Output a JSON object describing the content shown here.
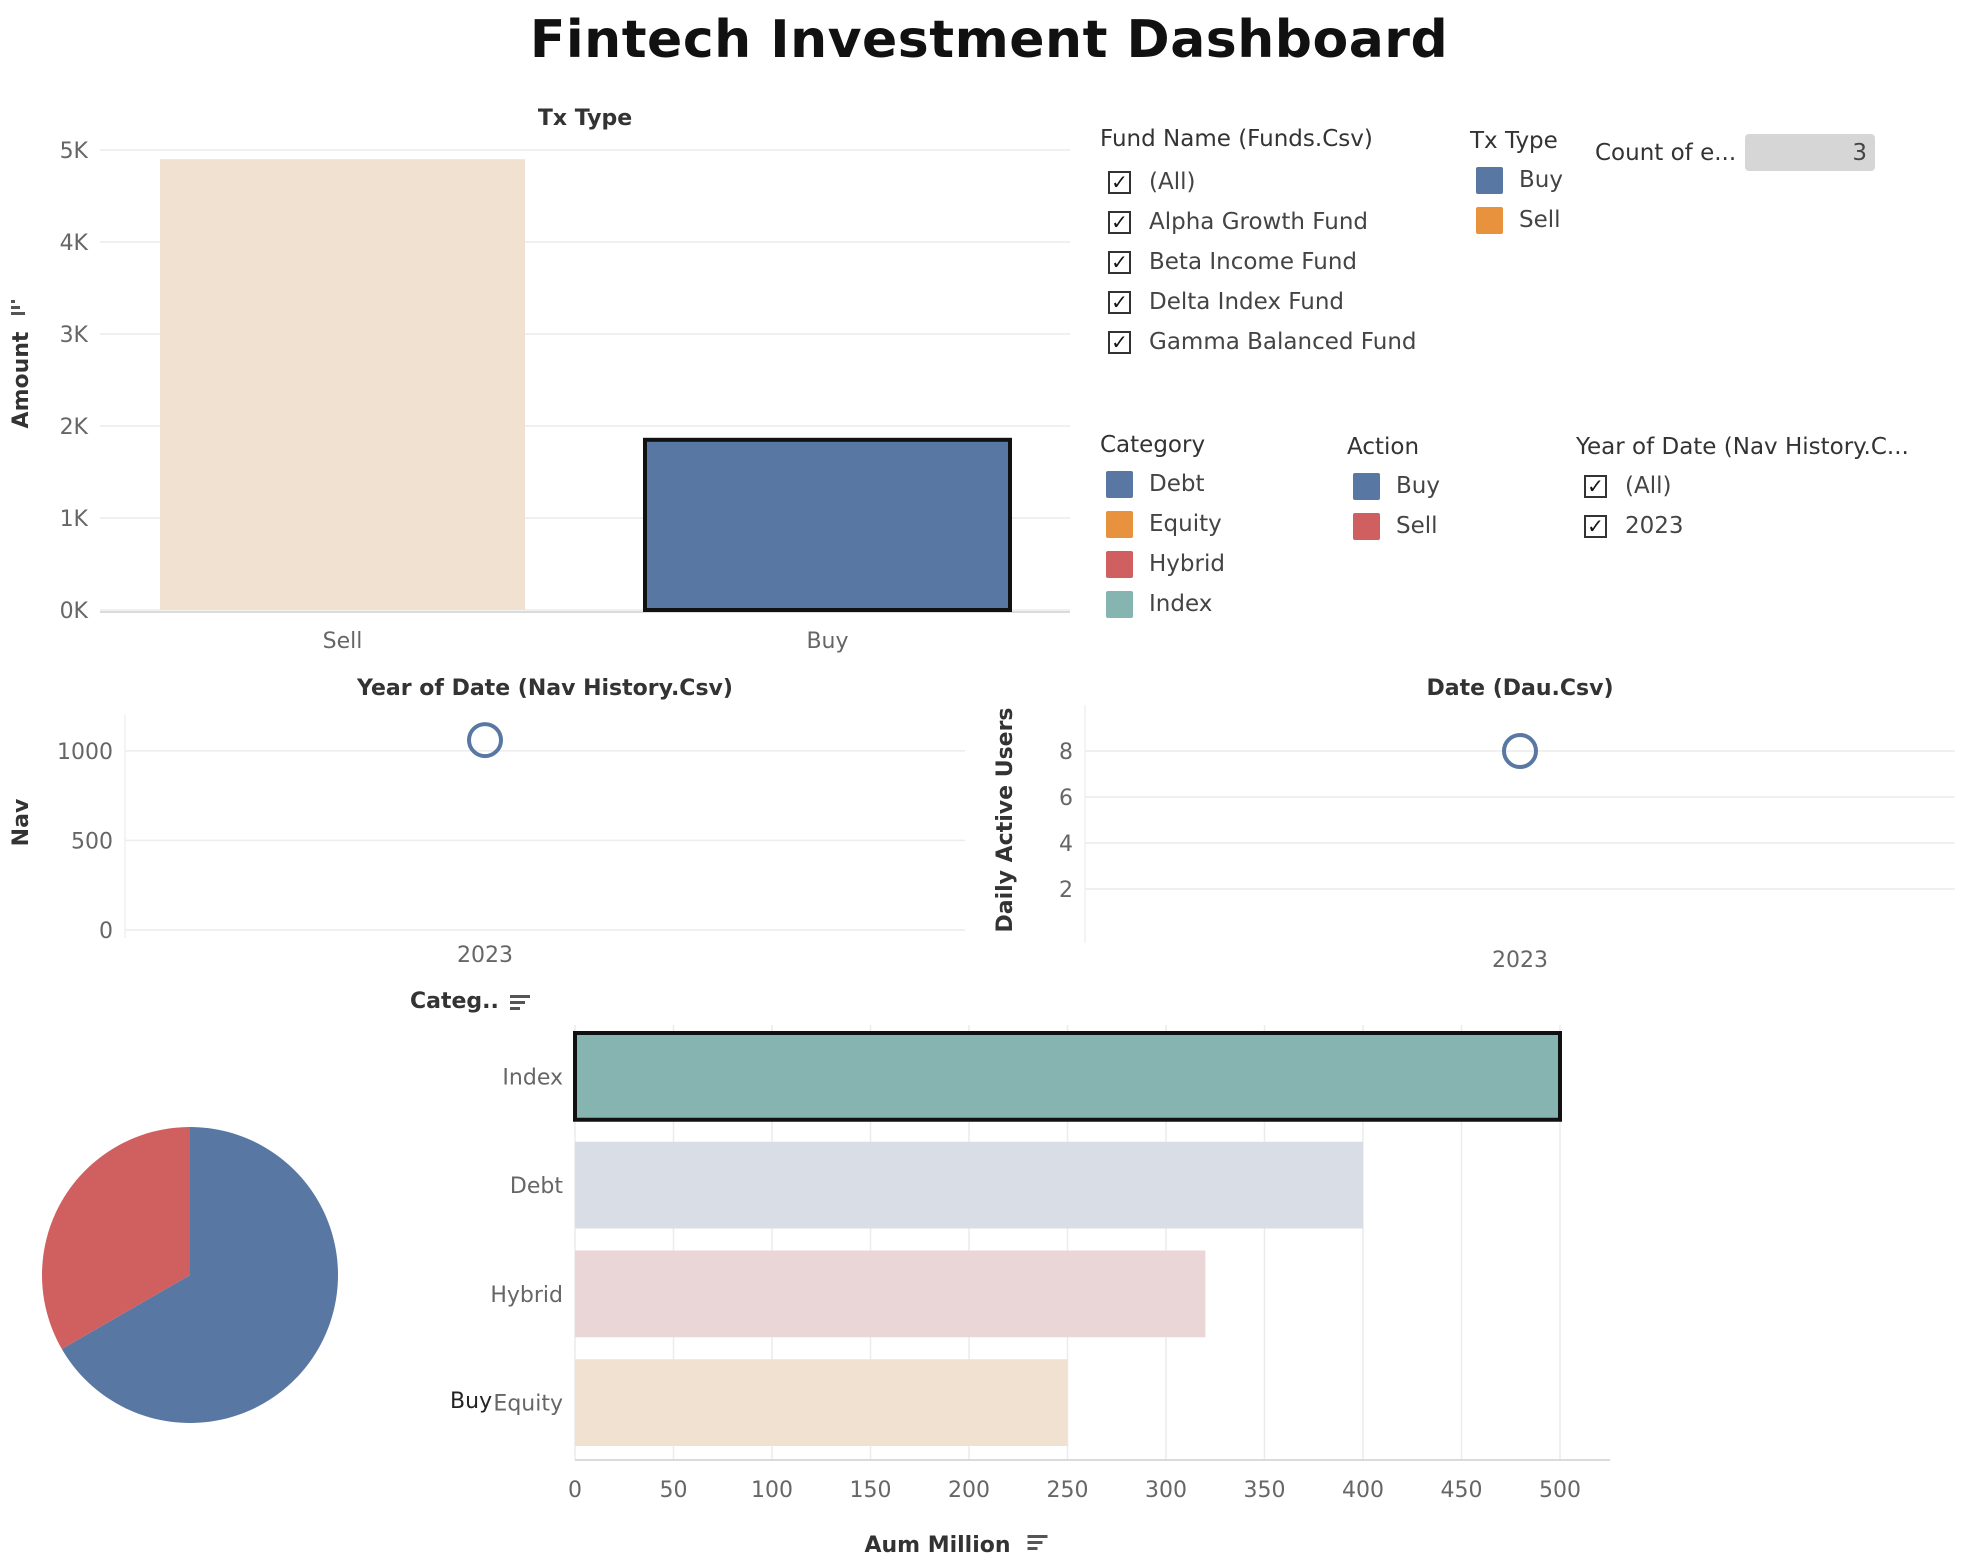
{
  "title": "Fintech Investment Dashboard",
  "chart_data": [
    {
      "id": "tx-amount",
      "type": "bar",
      "title": "Tx Type",
      "xlabel": "",
      "ylabel": "Amount",
      "categories": [
        "Sell",
        "Buy"
      ],
      "values": [
        4900,
        1850
      ],
      "colors": [
        "#f1e1d1",
        "#5877a2"
      ],
      "highlighted": "Buy",
      "ylim": [
        0,
        5000
      ],
      "yticks": [
        0,
        1000,
        2000,
        3000,
        4000,
        5000
      ],
      "ytick_labels": [
        "0K",
        "1K",
        "2K",
        "3K",
        "4K",
        "5K"
      ],
      "grid": true
    },
    {
      "id": "nav-by-year",
      "type": "scatter",
      "title": "Year of Date (Nav History.Csv)",
      "xlabel": "",
      "ylabel": "Nav",
      "categories": [
        "2023"
      ],
      "values": [
        1060
      ],
      "ylim": [
        0,
        1200
      ],
      "yticks": [
        0,
        500,
        1000
      ],
      "grid": true
    },
    {
      "id": "dau-by-date",
      "type": "scatter",
      "title": "Date (Dau.Csv)",
      "xlabel": "",
      "ylabel": "Daily Active Users",
      "categories": [
        "2023"
      ],
      "values": [
        8
      ],
      "ylim": [
        0,
        10
      ],
      "yticks": [
        2,
        4,
        6,
        8
      ],
      "grid": true
    },
    {
      "id": "action-pie",
      "type": "pie",
      "labels": [
        "Buy",
        "Sell"
      ],
      "values": [
        2,
        1
      ],
      "colors": [
        "#5877a2",
        "#d06060"
      ]
    },
    {
      "id": "aum-by-category",
      "type": "bar",
      "orientation": "horizontal",
      "title": "",
      "ylabel": "Categ..",
      "xlabel": "Aum Million",
      "categories": [
        "Index",
        "Debt",
        "Hybrid",
        "Equity"
      ],
      "values": [
        500,
        400,
        320,
        250
      ],
      "colors": [
        "#86b5b1",
        "#d8dde6",
        "#ead6d7",
        "#f1e1d1"
      ],
      "highlighted": "Index",
      "xlim": [
        0,
        500
      ],
      "xticks": [
        0,
        50,
        100,
        150,
        200,
        250,
        300,
        350,
        400,
        450,
        500
      ],
      "grid": true
    }
  ],
  "filters": {
    "fund_name": {
      "title": "Fund Name (Funds.Csv)",
      "options": [
        "(All)",
        "Alpha Growth Fund",
        "Beta Income Fund",
        "Delta Index Fund",
        "Gamma Balanced Fund"
      ]
    },
    "year": {
      "title": "Year of Date (Nav History.C...",
      "options": [
        "(All)",
        "2023"
      ]
    }
  },
  "legends": {
    "tx_type": {
      "title": "Tx Type",
      "items": [
        {
          "label": "Buy",
          "color": "#5877a2"
        },
        {
          "label": "Sell",
          "color": "#e8923d"
        }
      ]
    },
    "category": {
      "title": "Category",
      "items": [
        {
          "label": "Debt",
          "color": "#5877a2"
        },
        {
          "label": "Equity",
          "color": "#e8923d"
        },
        {
          "label": "Hybrid",
          "color": "#d06060"
        },
        {
          "label": "Index",
          "color": "#86b5b1"
        }
      ]
    },
    "action": {
      "title": "Action",
      "items": [
        {
          "label": "Buy",
          "color": "#5877a2"
        },
        {
          "label": "Sell",
          "color": "#d06060"
        }
      ]
    }
  },
  "count_widget": {
    "label": "Count of e...",
    "value": "3"
  }
}
